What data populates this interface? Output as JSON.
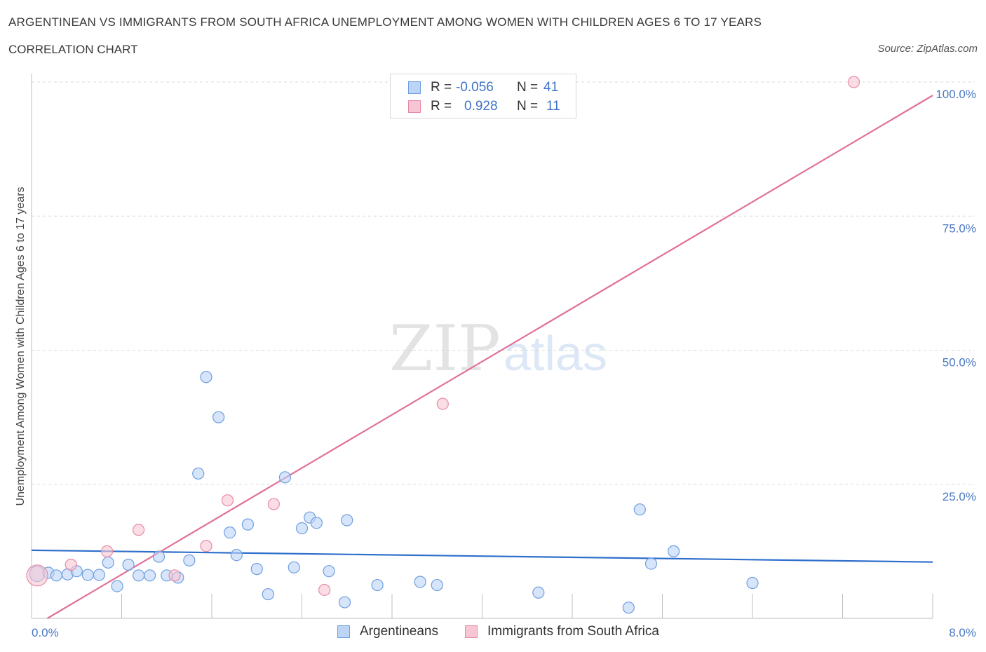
{
  "header": {
    "title": "ARGENTINEAN VS IMMIGRANTS FROM SOUTH AFRICA UNEMPLOYMENT AMONG WOMEN WITH CHILDREN AGES 6 TO 17 YEARS",
    "subtitle": "CORRELATION CHART",
    "source": "Source: ZipAtlas.com"
  },
  "watermark": {
    "zip": "ZIP",
    "atlas": "atlas"
  },
  "stats_legend": {
    "rows": [
      {
        "r_label": "R =",
        "r_value": "-0.056",
        "n_label": "N =",
        "n_value": "41",
        "color": "#a8c8f0",
        "border": "#6f9fe0"
      },
      {
        "r_label": "R =",
        "r_value": "0.928",
        "n_label": "N =",
        "n_value": "11",
        "color": "#f7bfcf",
        "border": "#e88aa6"
      }
    ]
  },
  "colors": {
    "blue_fill": "#bcd4f6",
    "blue_stroke": "#6f9fe0",
    "blue_line": "#2f6fcc",
    "pink_fill": "#f7c6d4",
    "pink_stroke": "#e88aa6",
    "pink_line": "#e0709a",
    "grid": "#d9d9d9",
    "tick_text": "#4a78c4"
  },
  "chart_data": {
    "type": "scatter",
    "title": "ARGENTINEAN VS IMMIGRANTS FROM SOUTH AFRICA UNEMPLOYMENT AMONG WOMEN WITH CHILDREN AGES 6 TO 17 YEARS",
    "xlabel": "",
    "ylabel": "Unemployment Among Women with Children Ages 6 to 17 years",
    "xlim": [
      0,
      8
    ],
    "ylim": [
      0,
      100
    ],
    "x_tick_labels": [
      "0.0%",
      "8.0%"
    ],
    "y_ticks": [
      25,
      50,
      75,
      100
    ],
    "y_tick_labels": [
      "25.0%",
      "50.0%",
      "75.0%",
      "100.0%"
    ],
    "grid": true,
    "legend": {
      "position": "bottom-center",
      "entries": [
        "Argentineans",
        "Immigrants from South Africa"
      ]
    },
    "series": [
      {
        "name": "Argentineans",
        "points": [
          [
            0.05,
            8.3
          ],
          [
            0.15,
            8.5
          ],
          [
            0.22,
            8.0
          ],
          [
            0.32,
            8.2
          ],
          [
            0.4,
            8.8
          ],
          [
            0.5,
            8.1
          ],
          [
            0.6,
            8.1
          ],
          [
            0.68,
            10.4
          ],
          [
            0.76,
            6.0
          ],
          [
            0.86,
            10.0
          ],
          [
            0.95,
            8.0
          ],
          [
            1.05,
            8.0
          ],
          [
            1.13,
            11.5
          ],
          [
            1.2,
            8.0
          ],
          [
            1.3,
            7.6
          ],
          [
            1.4,
            10.8
          ],
          [
            1.48,
            27.0
          ],
          [
            1.55,
            45.0
          ],
          [
            1.66,
            37.5
          ],
          [
            1.76,
            16.0
          ],
          [
            1.82,
            11.8
          ],
          [
            1.92,
            17.5
          ],
          [
            2.0,
            9.2
          ],
          [
            2.1,
            4.5
          ],
          [
            2.25,
            26.3
          ],
          [
            2.33,
            9.5
          ],
          [
            2.4,
            16.8
          ],
          [
            2.47,
            18.8
          ],
          [
            2.53,
            17.8
          ],
          [
            2.64,
            8.8
          ],
          [
            2.78,
            3.0
          ],
          [
            2.8,
            18.3
          ],
          [
            3.07,
            6.2
          ],
          [
            3.45,
            6.8
          ],
          [
            3.6,
            6.2
          ],
          [
            4.5,
            4.8
          ],
          [
            5.3,
            2.0
          ],
          [
            5.4,
            20.3
          ],
          [
            5.5,
            10.2
          ],
          [
            5.7,
            12.5
          ],
          [
            6.4,
            6.6
          ]
        ],
        "trend": {
          "x": [
            0,
            8
          ],
          "y": [
            12.7,
            10.5
          ]
        }
      },
      {
        "name": "Immigrants from South Africa",
        "points": [
          [
            0.05,
            8.0
          ],
          [
            0.35,
            10.0
          ],
          [
            0.67,
            12.5
          ],
          [
            0.95,
            16.5
          ],
          [
            1.27,
            8.0
          ],
          [
            1.55,
            13.5
          ],
          [
            1.74,
            22.0
          ],
          [
            2.15,
            21.3
          ],
          [
            2.6,
            5.3
          ],
          [
            3.65,
            40.0
          ],
          [
            7.3,
            100.0
          ]
        ],
        "trend": {
          "x": [
            0.14,
            8
          ],
          "y": [
            0,
            97.5
          ]
        }
      }
    ]
  }
}
